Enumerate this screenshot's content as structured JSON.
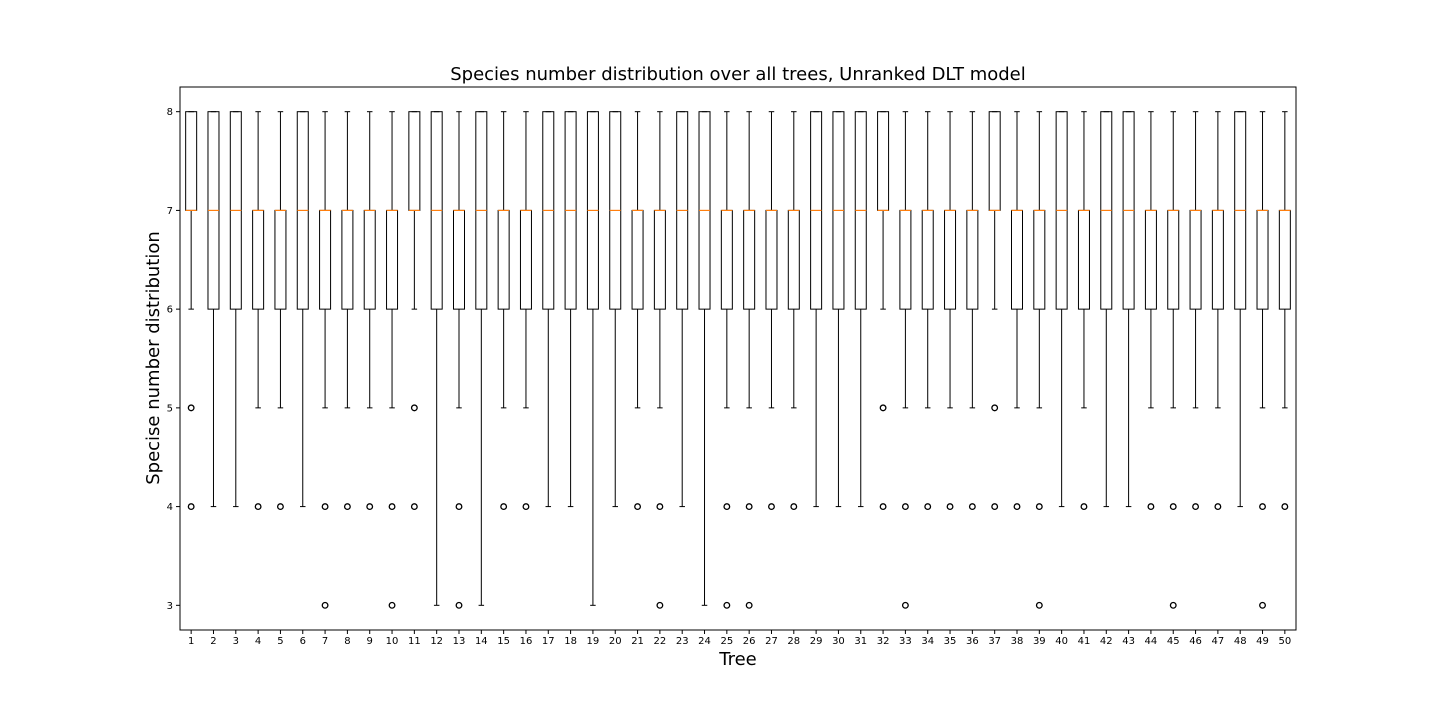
{
  "chart_data": {
    "type": "box",
    "title": "Species number distribution over all trees, Unranked DLT model",
    "xlabel": "Tree",
    "ylabel": "Specise number distribution",
    "ylim": [
      2.75,
      8.25
    ],
    "yticks": [
      3,
      4,
      5,
      6,
      7,
      8
    ],
    "grid": false,
    "colors": {
      "median": "#ff7f0e",
      "box": "#000000",
      "outlier": "#000000"
    },
    "boxes": [
      {
        "tree": "1",
        "q1": 7,
        "median": 7,
        "q3": 8,
        "whislo": 6,
        "whishi": 8,
        "outliers": [
          5,
          4
        ]
      },
      {
        "tree": "2",
        "q1": 6,
        "median": 7,
        "q3": 8,
        "whislo": 4,
        "whishi": 8,
        "outliers": []
      },
      {
        "tree": "3",
        "q1": 6,
        "median": 7,
        "q3": 8,
        "whislo": 4,
        "whishi": 8,
        "outliers": []
      },
      {
        "tree": "4",
        "q1": 6,
        "median": 7,
        "q3": 7,
        "whislo": 5,
        "whishi": 8,
        "outliers": [
          4
        ]
      },
      {
        "tree": "5",
        "q1": 6,
        "median": 7,
        "q3": 7,
        "whislo": 5,
        "whishi": 8,
        "outliers": [
          4
        ]
      },
      {
        "tree": "6",
        "q1": 6,
        "median": 7,
        "q3": 8,
        "whislo": 4,
        "whishi": 8,
        "outliers": []
      },
      {
        "tree": "7",
        "q1": 6,
        "median": 7,
        "q3": 7,
        "whislo": 5,
        "whishi": 8,
        "outliers": [
          4,
          3
        ]
      },
      {
        "tree": "8",
        "q1": 6,
        "median": 7,
        "q3": 7,
        "whislo": 5,
        "whishi": 8,
        "outliers": [
          4
        ]
      },
      {
        "tree": "9",
        "q1": 6,
        "median": 7,
        "q3": 7,
        "whislo": 5,
        "whishi": 8,
        "outliers": [
          4
        ]
      },
      {
        "tree": "10",
        "q1": 6,
        "median": 7,
        "q3": 7,
        "whislo": 5,
        "whishi": 8,
        "outliers": [
          4,
          3
        ]
      },
      {
        "tree": "11",
        "q1": 7,
        "median": 7,
        "q3": 8,
        "whislo": 6,
        "whishi": 8,
        "outliers": [
          5,
          4
        ]
      },
      {
        "tree": "12",
        "q1": 6,
        "median": 7,
        "q3": 8,
        "whislo": 3,
        "whishi": 8,
        "outliers": []
      },
      {
        "tree": "13",
        "q1": 6,
        "median": 7,
        "q3": 7,
        "whislo": 5,
        "whishi": 8,
        "outliers": [
          4,
          3
        ]
      },
      {
        "tree": "14",
        "q1": 6,
        "median": 7,
        "q3": 8,
        "whislo": 3,
        "whishi": 8,
        "outliers": []
      },
      {
        "tree": "15",
        "q1": 6,
        "median": 7,
        "q3": 7,
        "whislo": 5,
        "whishi": 8,
        "outliers": [
          4
        ]
      },
      {
        "tree": "16",
        "q1": 6,
        "median": 7,
        "q3": 7,
        "whislo": 5,
        "whishi": 8,
        "outliers": [
          4
        ]
      },
      {
        "tree": "17",
        "q1": 6,
        "median": 7,
        "q3": 8,
        "whislo": 4,
        "whishi": 8,
        "outliers": []
      },
      {
        "tree": "18",
        "q1": 6,
        "median": 7,
        "q3": 8,
        "whislo": 4,
        "whishi": 8,
        "outliers": []
      },
      {
        "tree": "19",
        "q1": 6,
        "median": 7,
        "q3": 8,
        "whislo": 3,
        "whishi": 8,
        "outliers": []
      },
      {
        "tree": "20",
        "q1": 6,
        "median": 7,
        "q3": 8,
        "whislo": 4,
        "whishi": 8,
        "outliers": []
      },
      {
        "tree": "21",
        "q1": 6,
        "median": 7,
        "q3": 7,
        "whislo": 5,
        "whishi": 8,
        "outliers": [
          4
        ]
      },
      {
        "tree": "22",
        "q1": 6,
        "median": 7,
        "q3": 7,
        "whislo": 5,
        "whishi": 8,
        "outliers": [
          4,
          3
        ]
      },
      {
        "tree": "23",
        "q1": 6,
        "median": 7,
        "q3": 8,
        "whislo": 4,
        "whishi": 8,
        "outliers": []
      },
      {
        "tree": "24",
        "q1": 6,
        "median": 7,
        "q3": 8,
        "whislo": 3,
        "whishi": 8,
        "outliers": []
      },
      {
        "tree": "25",
        "q1": 6,
        "median": 7,
        "q3": 7,
        "whislo": 5,
        "whishi": 8,
        "outliers": [
          4,
          3
        ]
      },
      {
        "tree": "26",
        "q1": 6,
        "median": 7,
        "q3": 7,
        "whislo": 5,
        "whishi": 8,
        "outliers": [
          4,
          3
        ]
      },
      {
        "tree": "27",
        "q1": 6,
        "median": 7,
        "q3": 7,
        "whislo": 5,
        "whishi": 8,
        "outliers": [
          4
        ]
      },
      {
        "tree": "28",
        "q1": 6,
        "median": 7,
        "q3": 7,
        "whislo": 5,
        "whishi": 8,
        "outliers": [
          4
        ]
      },
      {
        "tree": "29",
        "q1": 6,
        "median": 7,
        "q3": 8,
        "whislo": 4,
        "whishi": 8,
        "outliers": []
      },
      {
        "tree": "30",
        "q1": 6,
        "median": 7,
        "q3": 8,
        "whislo": 4,
        "whishi": 8,
        "outliers": []
      },
      {
        "tree": "31",
        "q1": 6,
        "median": 7,
        "q3": 8,
        "whislo": 4,
        "whishi": 8,
        "outliers": []
      },
      {
        "tree": "32",
        "q1": 7,
        "median": 7,
        "q3": 8,
        "whislo": 6,
        "whishi": 8,
        "outliers": [
          5,
          4
        ]
      },
      {
        "tree": "33",
        "q1": 6,
        "median": 7,
        "q3": 7,
        "whislo": 5,
        "whishi": 8,
        "outliers": [
          4,
          3
        ]
      },
      {
        "tree": "34",
        "q1": 6,
        "median": 7,
        "q3": 7,
        "whislo": 5,
        "whishi": 8,
        "outliers": [
          4
        ]
      },
      {
        "tree": "35",
        "q1": 6,
        "median": 7,
        "q3": 7,
        "whislo": 5,
        "whishi": 8,
        "outliers": [
          4
        ]
      },
      {
        "tree": "36",
        "q1": 6,
        "median": 7,
        "q3": 7,
        "whislo": 5,
        "whishi": 8,
        "outliers": [
          4
        ]
      },
      {
        "tree": "37",
        "q1": 7,
        "median": 7,
        "q3": 8,
        "whislo": 6,
        "whishi": 8,
        "outliers": [
          5,
          4
        ]
      },
      {
        "tree": "38",
        "q1": 6,
        "median": 7,
        "q3": 7,
        "whislo": 5,
        "whishi": 8,
        "outliers": [
          4
        ]
      },
      {
        "tree": "39",
        "q1": 6,
        "median": 7,
        "q3": 7,
        "whislo": 5,
        "whishi": 8,
        "outliers": [
          4,
          3
        ]
      },
      {
        "tree": "40",
        "q1": 6,
        "median": 7,
        "q3": 8,
        "whislo": 4,
        "whishi": 8,
        "outliers": []
      },
      {
        "tree": "41",
        "q1": 6,
        "median": 7,
        "q3": 7,
        "whislo": 5,
        "whishi": 8,
        "outliers": [
          4
        ]
      },
      {
        "tree": "42",
        "q1": 6,
        "median": 7,
        "q3": 8,
        "whislo": 4,
        "whishi": 8,
        "outliers": []
      },
      {
        "tree": "43",
        "q1": 6,
        "median": 7,
        "q3": 8,
        "whislo": 4,
        "whishi": 8,
        "outliers": []
      },
      {
        "tree": "44",
        "q1": 6,
        "median": 7,
        "q3": 7,
        "whislo": 5,
        "whishi": 8,
        "outliers": [
          4
        ]
      },
      {
        "tree": "45",
        "q1": 6,
        "median": 7,
        "q3": 7,
        "whislo": 5,
        "whishi": 8,
        "outliers": [
          4,
          3
        ]
      },
      {
        "tree": "46",
        "q1": 6,
        "median": 7,
        "q3": 7,
        "whislo": 5,
        "whishi": 8,
        "outliers": [
          4
        ]
      },
      {
        "tree": "47",
        "q1": 6,
        "median": 7,
        "q3": 7,
        "whislo": 5,
        "whishi": 8,
        "outliers": [
          4
        ]
      },
      {
        "tree": "48",
        "q1": 6,
        "median": 7,
        "q3": 8,
        "whislo": 4,
        "whishi": 8,
        "outliers": []
      },
      {
        "tree": "49",
        "q1": 6,
        "median": 7,
        "q3": 7,
        "whislo": 5,
        "whishi": 8,
        "outliers": [
          4,
          3
        ]
      },
      {
        "tree": "50",
        "q1": 6,
        "median": 7,
        "q3": 7,
        "whislo": 5,
        "whishi": 8,
        "outliers": [
          4
        ]
      }
    ]
  }
}
